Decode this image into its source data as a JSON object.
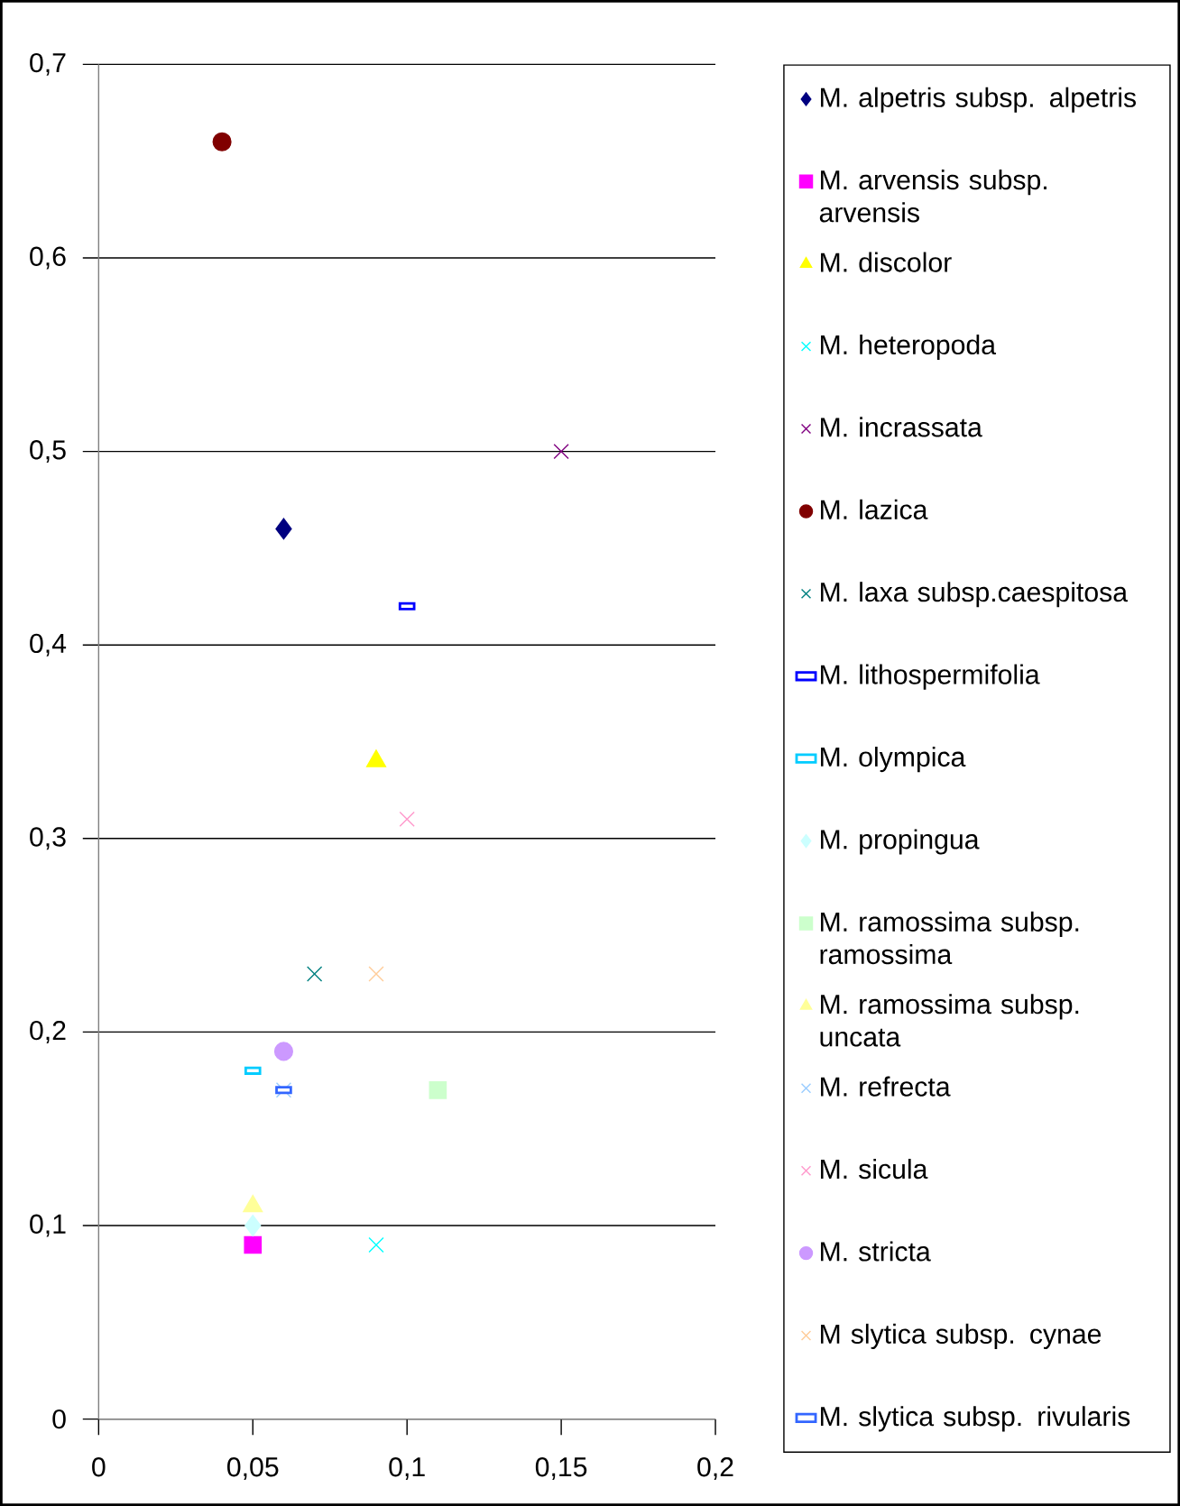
{
  "chart_data": {
    "type": "scatter",
    "xlim": [
      0,
      0.2
    ],
    "ylim": [
      0,
      0.7
    ],
    "xticks": [
      0,
      {
        "value": 0.05,
        "label": "0,05"
      },
      {
        "value": 0.1,
        "label": "0,1"
      },
      {
        "value": 0.15,
        "label": "0,15"
      },
      {
        "value": 0.2,
        "label": "0,2"
      }
    ],
    "yticks": [
      0,
      {
        "value": 0.1,
        "label": "0,1"
      },
      {
        "value": 0.2,
        "label": "0,2"
      },
      {
        "value": 0.3,
        "label": "0,3"
      },
      {
        "value": 0.4,
        "label": "0,4"
      },
      {
        "value": 0.5,
        "label": "0,5"
      },
      {
        "value": 0.6,
        "label": "0,6"
      },
      {
        "value": 0.7,
        "label": "0,7"
      }
    ],
    "grid": "y",
    "legend": "right",
    "series": [
      {
        "name": "M. alpetris subsp. alpetris",
        "color": "#000080",
        "marker": "diamond",
        "x": [
          0.06
        ],
        "values": [
          0.46
        ]
      },
      {
        "name": "M. arvensis subsp. arvensis",
        "color": "#ff00ff",
        "marker": "square",
        "x": [
          0.05
        ],
        "values": [
          0.09
        ]
      },
      {
        "name": "M. discolor",
        "color": "#ffff00",
        "marker": "triangle",
        "x": [
          0.09
        ],
        "values": [
          0.34
        ]
      },
      {
        "name": "M. heteropoda",
        "color": "#00ffff",
        "marker": "cross",
        "x": [
          0.09
        ],
        "values": [
          0.09
        ]
      },
      {
        "name": "M. incrassata",
        "color": "#800080",
        "marker": "cross",
        "x": [
          0.15
        ],
        "values": [
          0.5
        ]
      },
      {
        "name": "M. lazica",
        "color": "#800000",
        "marker": "circle",
        "x": [
          0.04
        ],
        "values": [
          0.66
        ]
      },
      {
        "name": "M. laxa subsp.caespitosa",
        "color": "#008080",
        "marker": "cross",
        "x": [
          0.07
        ],
        "values": [
          0.23
        ]
      },
      {
        "name": "M. lithospermifolia",
        "color": "#0000ff",
        "marker": "square",
        "x": [
          0.1
        ],
        "values": [
          0.42
        ]
      },
      {
        "name": "M. olympica",
        "color": "#00ccff",
        "marker": "square",
        "x": [
          0.05
        ],
        "values": [
          0.18
        ]
      },
      {
        "name": "M. propingua",
        "color": "#ccffff",
        "marker": "diamond",
        "x": [
          0.05
        ],
        "values": [
          0.1
        ]
      },
      {
        "name": "M. ramossima subsp. ramossima",
        "color": "#ccffcc",
        "marker": "square",
        "x": [
          0.11
        ],
        "values": [
          0.17
        ]
      },
      {
        "name": "M. ramossima subsp. uncata",
        "color": "#ffff99",
        "marker": "triangle",
        "x": [
          0.05
        ],
        "values": [
          0.11
        ]
      },
      {
        "name": "M. refrecta",
        "color": "#99ccff",
        "marker": "cross",
        "x": [
          0.06
        ],
        "values": [
          0.17
        ]
      },
      {
        "name": "M. sicula",
        "color": "#ff99cc",
        "marker": "cross",
        "x": [
          0.1
        ],
        "values": [
          0.31
        ]
      },
      {
        "name": "M. stricta",
        "color": "#cc99ff",
        "marker": "circle",
        "x": [
          0.06
        ],
        "values": [
          0.19
        ]
      },
      {
        "name": "M slytica subsp. cynae",
        "color": "#ffcc99",
        "marker": "cross",
        "x": [
          0.09
        ],
        "values": [
          0.23
        ]
      },
      {
        "name": "M. slytica subsp. rivularis",
        "color": "#3366ff",
        "marker": "square",
        "x": [
          0.06
        ],
        "values": [
          0.17
        ]
      }
    ]
  }
}
